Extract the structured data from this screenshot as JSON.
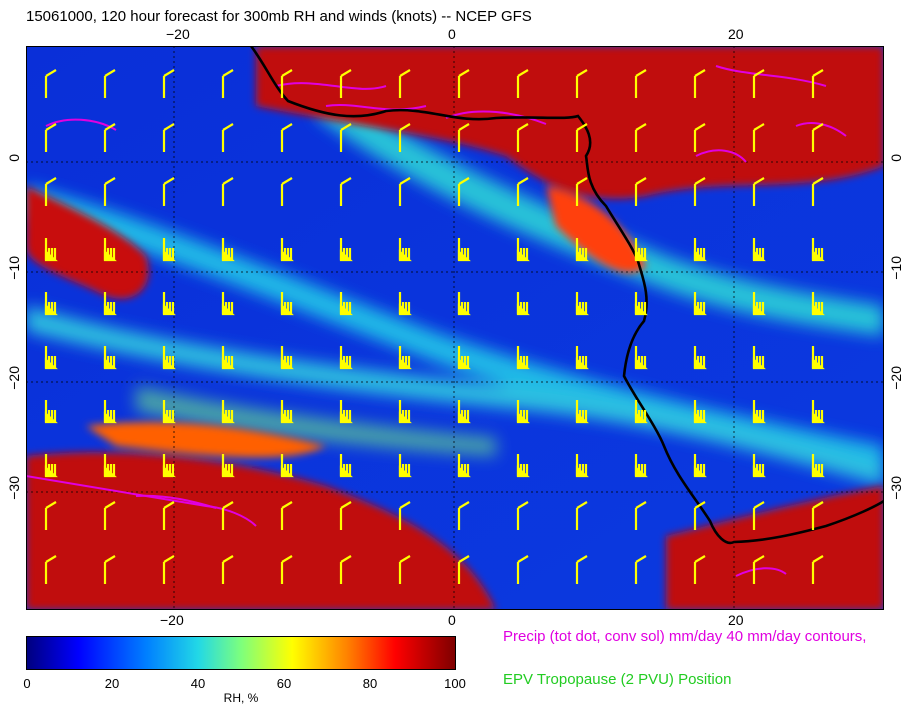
{
  "title": "15061000, 120 hour forecast for 300mb RH and winds (knots) -- NCEP GFS",
  "axes": {
    "lon_ticks": [
      "−20",
      "0",
      "20"
    ],
    "lat_ticks": [
      "0",
      "−10",
      "−20",
      "−30"
    ]
  },
  "colorbar": {
    "label": "RH, %",
    "ticks": [
      "0",
      "20",
      "40",
      "60",
      "80",
      "100"
    ],
    "colors": [
      "#00007f",
      "#0000ff",
      "#0080ff",
      "#22d8e6",
      "#7dff7d",
      "#ffff00",
      "#ff8000",
      "#ff0000",
      "#7f0000"
    ]
  },
  "annotations": {
    "precip": "Precip (tot dot, conv sol) mm/day 40 mm/day contours,",
    "epv": "EPV Tropopause (2 PVU) Position"
  },
  "colors": {
    "precip": "#e000e0",
    "epv": "#22cc22",
    "barbs": "#ffff00",
    "coast": "#000000"
  }
}
